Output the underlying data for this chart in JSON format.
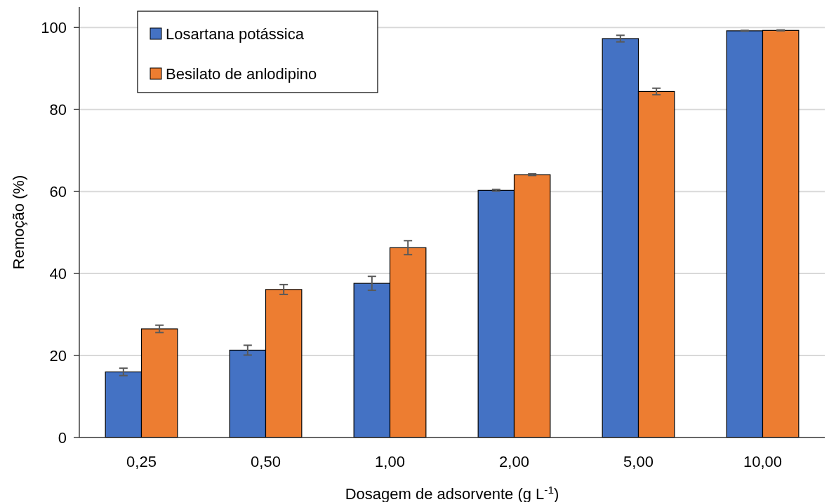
{
  "chart_data": {
    "type": "bar",
    "xlabel": "Dosagem de adsorvente (g L$^{-1}$)",
    "ylabel": "Remoção (%)",
    "categories": [
      "0,25",
      "0,50",
      "1,00",
      "2,00",
      "5,00",
      "10,00"
    ],
    "series": [
      {
        "name": "Losartana potássica",
        "color": "#4472c4",
        "values": [
          16.0,
          21.3,
          37.6,
          60.3,
          97.3,
          99.2
        ],
        "errors": [
          0.9,
          1.2,
          1.7,
          0.2,
          0.8,
          0.1
        ]
      },
      {
        "name": "Besilato de anlodipino",
        "color": "#ed7d31",
        "values": [
          26.5,
          36.1,
          46.3,
          64.1,
          84.4,
          99.3
        ],
        "errors": [
          0.9,
          1.2,
          1.7,
          0.2,
          0.8,
          0.1
        ]
      }
    ],
    "ylim": [
      0,
      105
    ],
    "yticks": [
      0,
      20,
      40,
      60,
      80,
      100
    ],
    "grid": "y",
    "legend": "top left"
  }
}
